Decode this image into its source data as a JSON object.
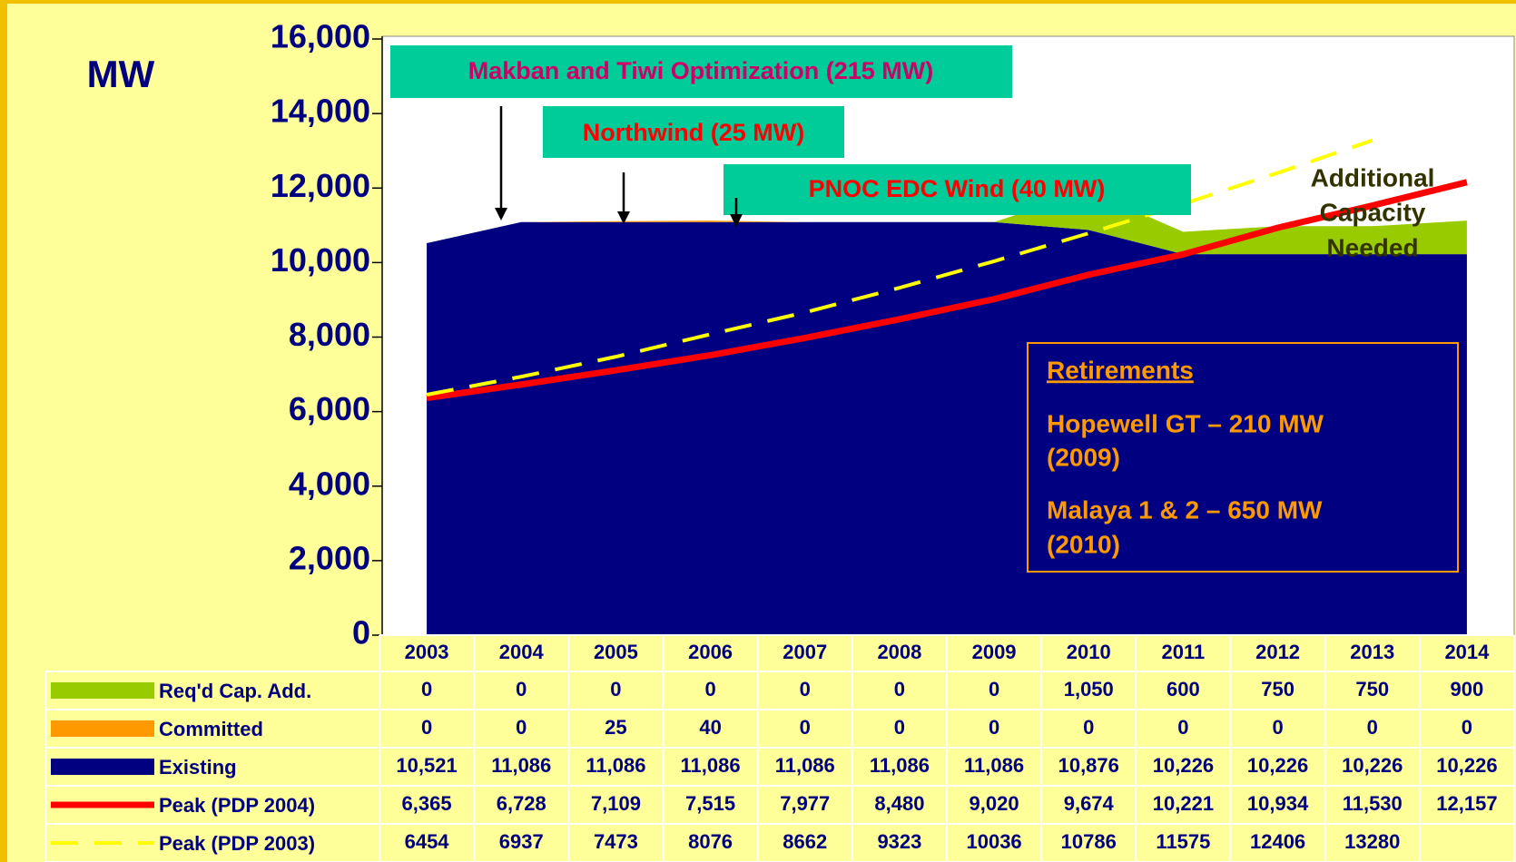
{
  "chart_data": {
    "type": "stacked_area",
    "y_label": "MW",
    "categories": [
      "2003",
      "2004",
      "2005",
      "2006",
      "2007",
      "2008",
      "2009",
      "2010",
      "2011",
      "2012",
      "2013",
      "2014"
    ],
    "ylim": [
      0,
      16000
    ],
    "yticks": [
      0,
      {
        "value": 2000,
        "label": "2,000"
      },
      {
        "value": 4000,
        "label": "4,000"
      },
      {
        "value": 6000,
        "label": "6,000"
      },
      {
        "value": 8000,
        "label": "8,000"
      },
      {
        "value": 10000,
        "label": "10,000"
      },
      {
        "value": 12000,
        "label": "12,000"
      },
      {
        "value": 14000,
        "label": "14,000"
      },
      {
        "value": 16000,
        "label": "16,000"
      }
    ],
    "series": [
      {
        "name": "Req'd Cap. Add.",
        "type": "area",
        "color": "#99cc00",
        "values": [
          0,
          0,
          0,
          0,
          0,
          0,
          0,
          1050,
          600,
          750,
          750,
          900
        ],
        "value_labels": [
          "0",
          "0",
          "0",
          "0",
          "0",
          "0",
          "0",
          "1,050",
          "600",
          "750",
          "750",
          "900"
        ]
      },
      {
        "name": "Committed",
        "type": "area",
        "color": "#ff9900",
        "values": [
          0,
          0,
          25,
          40,
          0,
          0,
          0,
          0,
          0,
          0,
          0,
          0
        ]
      },
      {
        "name": "Existing",
        "type": "area",
        "color": "#000080",
        "values": [
          10521,
          11086,
          11086,
          11086,
          11086,
          11086,
          11086,
          10876,
          10226,
          10226,
          10226,
          10226
        ],
        "value_labels": [
          "10,521",
          "11,086",
          "11,086",
          "11,086",
          "11,086",
          "11,086",
          "11,086",
          "10,876",
          "10,226",
          "10,226",
          "10,226",
          "10,226"
        ]
      },
      {
        "name": "Peak (PDP 2004)",
        "type": "line",
        "color": "#ff0000",
        "values": [
          6365,
          6728,
          7109,
          7515,
          7977,
          8480,
          9020,
          9674,
          10221,
          10934,
          11530,
          12157
        ],
        "value_labels": [
          "6,365",
          "6,728",
          "7,109",
          "7,515",
          "7,977",
          "8,480",
          "9,020",
          "9,674",
          "10,221",
          "10,934",
          "11,530",
          "12,157"
        ]
      },
      {
        "name": "Peak (PDP 2003)",
        "type": "line",
        "dashed": true,
        "color": "#ffff00",
        "values": [
          6454,
          6937,
          7473,
          8076,
          8662,
          9323,
          10036,
          10786,
          11575,
          12406,
          13280,
          null
        ]
      }
    ],
    "annotations": [
      {
        "text": "Makban and Tiwi Optimization (215 MW)",
        "color": "#cc0066"
      },
      {
        "text": "Northwind (25 MW)",
        "color": "#ff0000"
      },
      {
        "text": "PNOC   EDC Wind (40 MW)",
        "color": "#ff0000"
      }
    ],
    "retirements": {
      "title": "Retirements",
      "items": [
        [
          "Hopewell GT –    210  MW",
          "(2009)"
        ],
        [
          "Malaya 1 & 2  –  650 MW",
          "(2010)"
        ]
      ]
    },
    "additional_capacity": [
      "Additional",
      "Capacity",
      "Needed"
    ]
  }
}
